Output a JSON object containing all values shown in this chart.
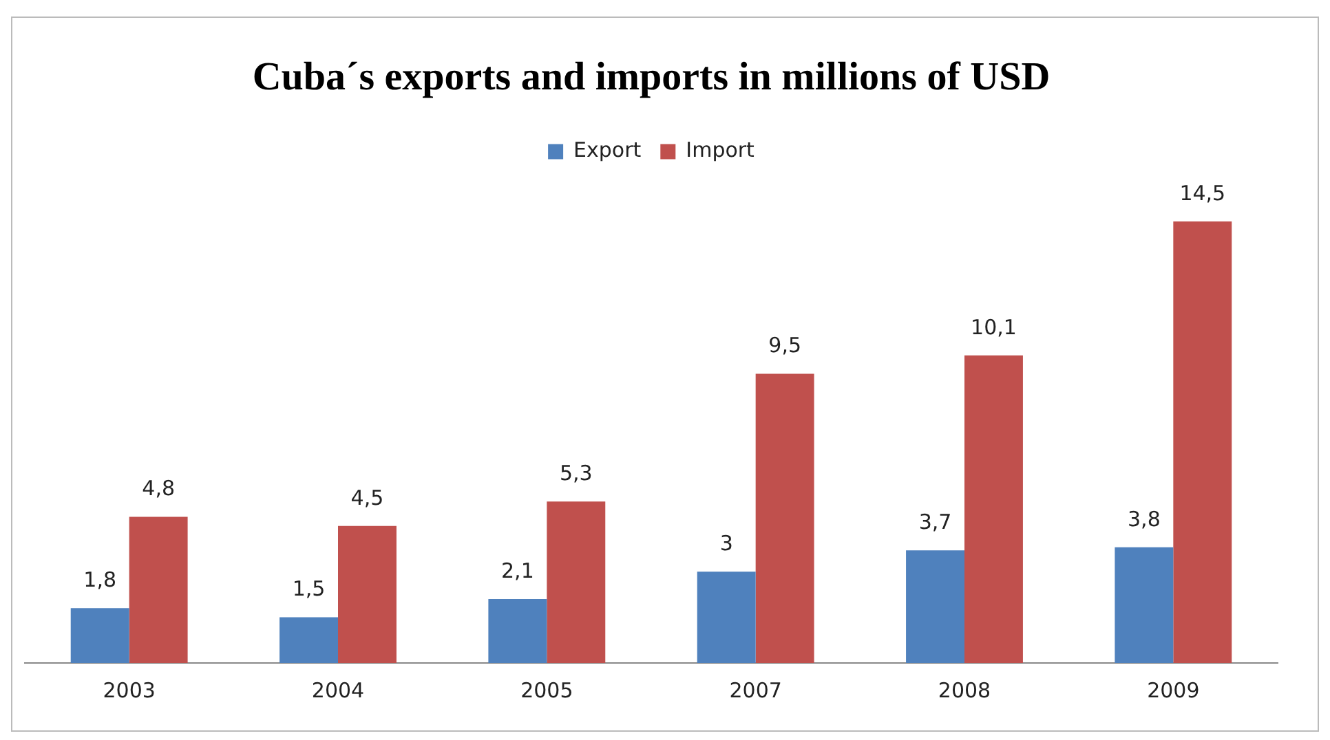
{
  "chart_data": {
    "type": "bar",
    "title": "Cuba´s exports and imports in millions of USD",
    "categories": [
      "2003",
      "2004",
      "2005",
      "2007",
      "2008",
      "2009"
    ],
    "series": [
      {
        "name": "Export",
        "color": "#4f81bd",
        "values": [
          1.8,
          1.5,
          2.1,
          3,
          3.7,
          3.8
        ],
        "value_labels": [
          "1,8",
          "1,5",
          "2,1",
          "3",
          "3,7",
          "3,8"
        ]
      },
      {
        "name": "Import",
        "color": "#c0504d",
        "values": [
          4.8,
          4.5,
          5.3,
          9.5,
          10.1,
          14.5
        ],
        "value_labels": [
          "4,8",
          "4,5",
          "5,3",
          "9,5",
          "10,1",
          "14,5"
        ]
      }
    ],
    "legend": "top",
    "grid": false,
    "tick_labels": "x"
  }
}
